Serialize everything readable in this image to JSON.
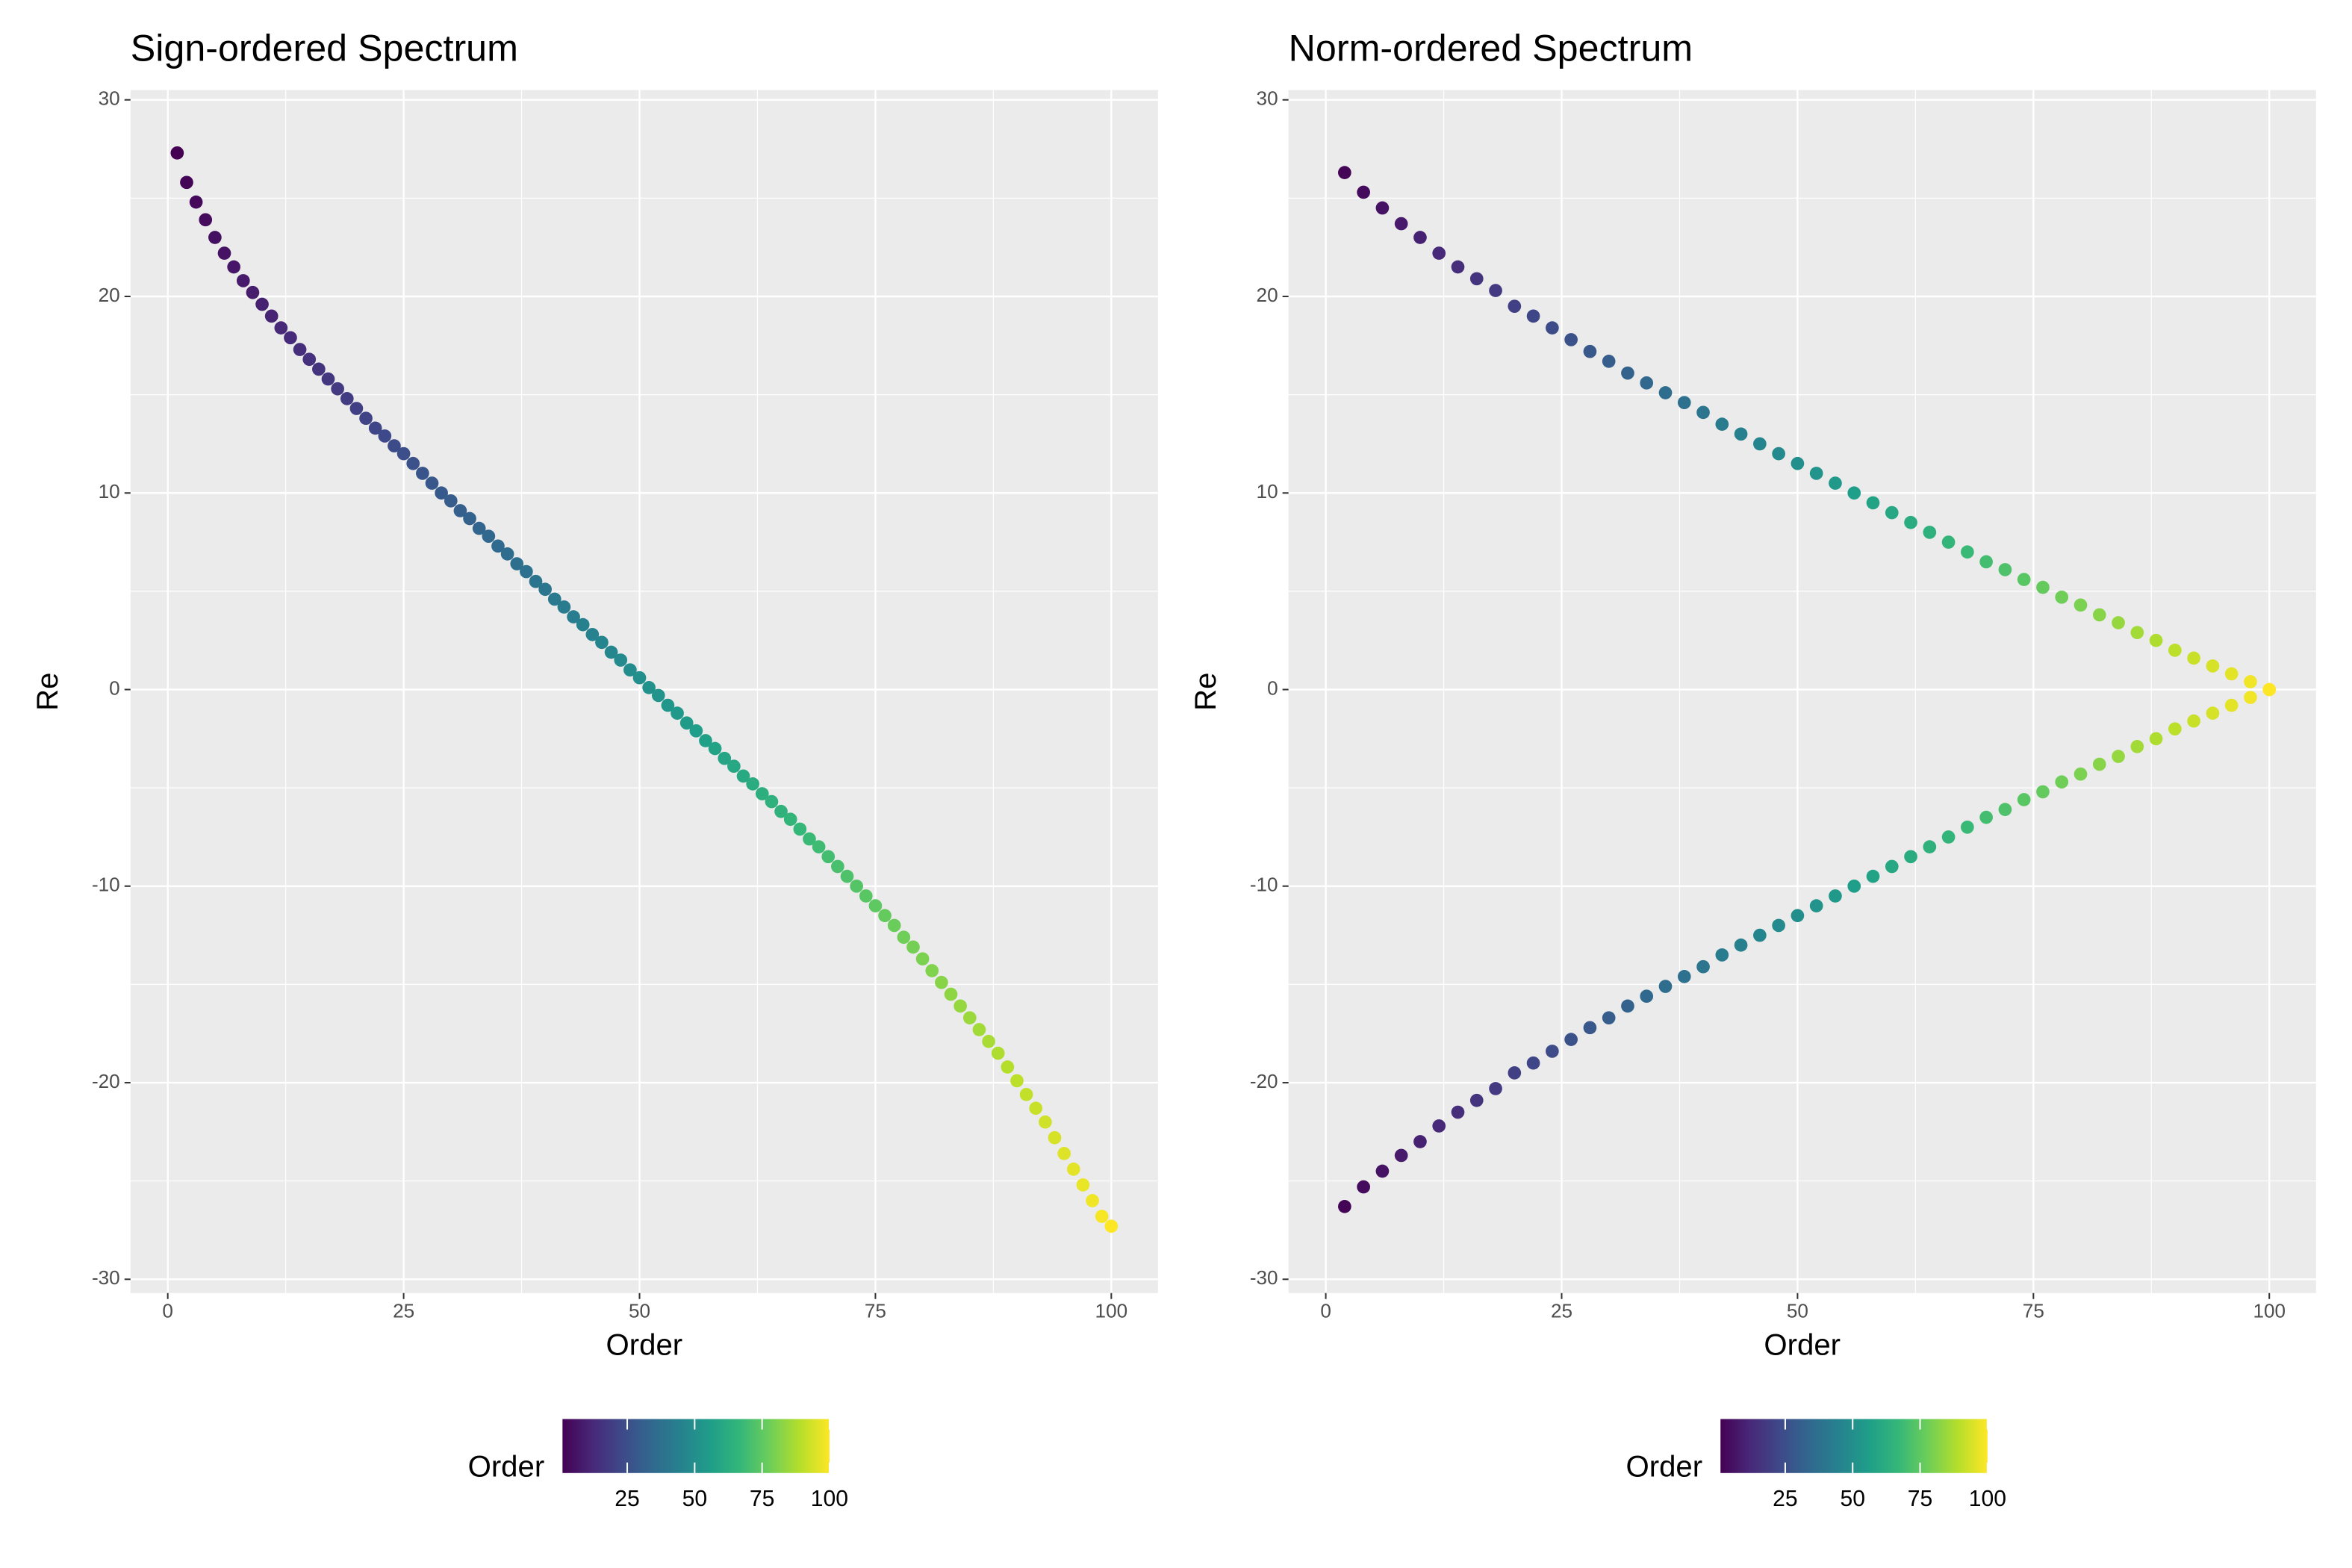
{
  "chart_data": [
    {
      "type": "scatter",
      "title": "Sign-ordered Spectrum",
      "x_label": "Order",
      "y_label": "Re",
      "x": [
        1,
        2,
        3,
        4,
        5,
        6,
        7,
        8,
        9,
        10,
        11,
        12,
        13,
        14,
        15,
        16,
        17,
        18,
        19,
        20,
        21,
        22,
        23,
        24,
        25,
        26,
        27,
        28,
        29,
        30,
        31,
        32,
        33,
        34,
        35,
        36,
        37,
        38,
        39,
        40,
        41,
        42,
        43,
        44,
        45,
        46,
        47,
        48,
        49,
        50,
        51,
        52,
        53,
        54,
        55,
        56,
        57,
        58,
        59,
        60,
        61,
        62,
        63,
        64,
        65,
        66,
        67,
        68,
        69,
        70,
        71,
        72,
        73,
        74,
        75,
        76,
        77,
        78,
        79,
        80,
        81,
        82,
        83,
        84,
        85,
        86,
        87,
        88,
        89,
        90,
        91,
        92,
        93,
        94,
        95,
        96,
        97,
        98,
        99,
        100
      ],
      "y": [
        27.3,
        25.8,
        24.8,
        23.9,
        23.0,
        22.2,
        21.5,
        20.8,
        20.2,
        19.6,
        19.0,
        18.4,
        17.9,
        17.3,
        16.8,
        16.3,
        15.8,
        15.3,
        14.8,
        14.3,
        13.8,
        13.3,
        12.9,
        12.4,
        12.0,
        11.5,
        11.0,
        10.5,
        10.0,
        9.6,
        9.1,
        8.7,
        8.2,
        7.8,
        7.3,
        6.9,
        6.4,
        6.0,
        5.5,
        5.1,
        4.6,
        4.2,
        3.7,
        3.3,
        2.8,
        2.4,
        1.9,
        1.5,
        1.0,
        0.6,
        0.1,
        -0.3,
        -0.8,
        -1.2,
        -1.7,
        -2.1,
        -2.6,
        -3.0,
        -3.5,
        -3.9,
        -4.4,
        -4.8,
        -5.3,
        -5.7,
        -6.2,
        -6.6,
        -7.1,
        -7.6,
        -8.0,
        -8.5,
        -9.0,
        -9.5,
        -10.0,
        -10.5,
        -11.0,
        -11.5,
        -12.0,
        -12.6,
        -13.1,
        -13.7,
        -14.3,
        -14.9,
        -15.5,
        -16.1,
        -16.7,
        -17.3,
        -17.9,
        -18.5,
        -19.2,
        -19.9,
        -20.6,
        -21.3,
        -22.0,
        -22.8,
        -23.6,
        -24.4,
        -25.2,
        -26.0,
        -26.8,
        -27.3
      ],
      "xlim": [
        -3.95,
        104.95
      ],
      "ylim": [
        -30.7,
        30.5
      ],
      "xticks": [
        0,
        25,
        50,
        75,
        100
      ],
      "yticks": [
        -30,
        -20,
        -10,
        0,
        10,
        20,
        30
      ],
      "grid": true,
      "legend_position": "bottom",
      "colorbar": {
        "title": "Order",
        "lim": [
          1,
          100
        ],
        "ticks": [
          25,
          50,
          75,
          100
        ],
        "colors": [
          "#440154",
          "#482878",
          "#3e4989",
          "#31688e",
          "#26828e",
          "#1f9e89",
          "#35b779",
          "#6ece58",
          "#b5de2b",
          "#fde725"
        ]
      }
    },
    {
      "type": "scatter",
      "title": "Norm-ordered Spectrum",
      "x_label": "Order",
      "y_label": "Re",
      "x": [
        2,
        2,
        4,
        4,
        6,
        6,
        8,
        8,
        10,
        10,
        12,
        12,
        14,
        14,
        16,
        16,
        18,
        18,
        20,
        20,
        22,
        22,
        24,
        24,
        26,
        26,
        28,
        28,
        30,
        30,
        32,
        32,
        34,
        34,
        36,
        36,
        38,
        38,
        40,
        40,
        42,
        42,
        44,
        44,
        46,
        46,
        48,
        48,
        50,
        50,
        52,
        52,
        54,
        54,
        56,
        56,
        58,
        58,
        60,
        60,
        62,
        62,
        64,
        64,
        66,
        66,
        68,
        68,
        70,
        70,
        72,
        72,
        74,
        74,
        76,
        76,
        78,
        78,
        80,
        80,
        82,
        82,
        84,
        84,
        86,
        86,
        88,
        88,
        90,
        90,
        92,
        92,
        94,
        94,
        96,
        96,
        98,
        98,
        100,
        100
      ],
      "y": [
        26.3,
        -26.3,
        25.3,
        -25.3,
        24.5,
        -24.5,
        23.7,
        -23.7,
        23.0,
        -23.0,
        22.2,
        -22.2,
        21.5,
        -21.5,
        20.9,
        -20.9,
        20.3,
        -20.3,
        19.5,
        -19.5,
        19.0,
        -19.0,
        18.4,
        -18.4,
        17.8,
        -17.8,
        17.2,
        -17.2,
        16.7,
        -16.7,
        16.1,
        -16.1,
        15.6,
        -15.6,
        15.1,
        -15.1,
        14.6,
        -14.6,
        14.1,
        -14.1,
        13.5,
        -13.5,
        13.0,
        -13.0,
        12.5,
        -12.5,
        12.0,
        -12.0,
        11.5,
        -11.5,
        11.0,
        -11.0,
        10.5,
        -10.5,
        10.0,
        -10.0,
        9.5,
        -9.5,
        9.0,
        -9.0,
        8.5,
        -8.5,
        8.0,
        -8.0,
        7.5,
        -7.5,
        7.0,
        -7.0,
        6.5,
        -6.5,
        6.1,
        -6.1,
        5.6,
        -5.6,
        5.2,
        -5.2,
        4.7,
        -4.7,
        4.3,
        -4.3,
        3.8,
        -3.8,
        3.4,
        -3.4,
        2.9,
        -2.9,
        2.5,
        -2.5,
        2.0,
        -2.0,
        1.6,
        -1.6,
        1.2,
        -1.2,
        0.8,
        -0.8,
        0.4,
        -0.4,
        0.0,
        0.0
      ],
      "xlim": [
        -3.95,
        104.95
      ],
      "ylim": [
        -30.7,
        30.5
      ],
      "xticks": [
        0,
        25,
        50,
        75,
        100
      ],
      "yticks": [
        -30,
        -20,
        -10,
        0,
        10,
        20,
        30
      ],
      "grid": true,
      "legend_position": "bottom",
      "colorbar": {
        "title": "Order",
        "lim": [
          1,
          100
        ],
        "ticks": [
          25,
          50,
          75,
          100
        ],
        "colors": [
          "#440154",
          "#482878",
          "#3e4989",
          "#31688e",
          "#26828e",
          "#1f9e89",
          "#35b779",
          "#6ece58",
          "#b5de2b",
          "#fde725"
        ]
      }
    }
  ]
}
